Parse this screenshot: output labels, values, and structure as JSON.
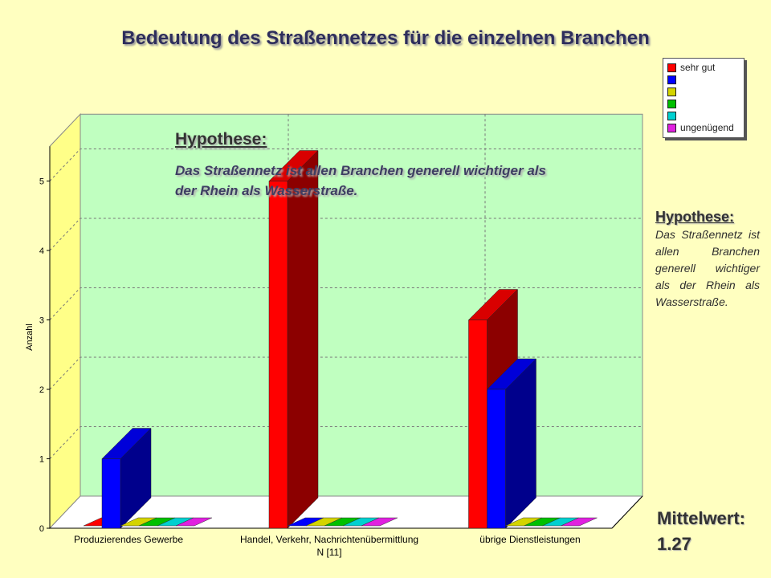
{
  "title": "Bedeutung des Straßennetzes für die einzelnen Branchen",
  "hypothesis_inline": {
    "title": "Hypothese:",
    "text": "Das Straßennetz ist allen Branchen generell wichtiger als der Rhein als Wasserstraße."
  },
  "hypothesis_side": {
    "title": "Hypothese:",
    "text": "Das Straßennetz ist allen Branchen generell wichtiger als der Rhein als Wasserstraße."
  },
  "mean": {
    "label": "Mittelwert:",
    "value": "1.27"
  },
  "chart_data": {
    "type": "bar",
    "categories": [
      "Produzierendes Gewerbe",
      "Handel, Verkehr, Nachrichtenübermittlung",
      "übrige Dienstleistungen"
    ],
    "xlabel": "N [11]",
    "ylabel": "Anzahl",
    "ylim": [
      0,
      5.5
    ],
    "yticks": [
      0,
      1,
      2,
      3,
      4,
      5
    ],
    "grid": true,
    "legend_position": "top-right",
    "series": [
      {
        "name": "sehr gut",
        "color": "#ff0000",
        "values": [
          0,
          5,
          3
        ]
      },
      {
        "name": "",
        "color": "#0000ff",
        "values": [
          1,
          0,
          2
        ]
      },
      {
        "name": "",
        "color": "#d4d400",
        "values": [
          0,
          0,
          0
        ]
      },
      {
        "name": "",
        "color": "#00c000",
        "values": [
          0,
          0,
          0
        ]
      },
      {
        "name": "",
        "color": "#00d0d0",
        "values": [
          0,
          0,
          0
        ]
      },
      {
        "name": "ungenügend",
        "color": "#e020e0",
        "values": [
          0,
          0,
          0
        ]
      }
    ]
  }
}
